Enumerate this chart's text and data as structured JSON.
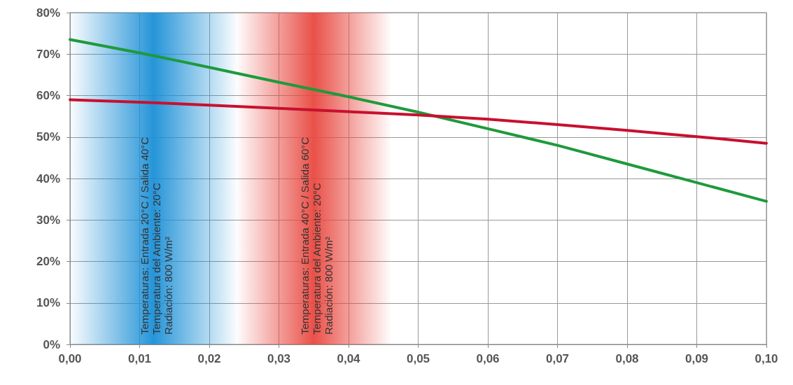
{
  "chart_data": {
    "type": "line",
    "x": [
      0,
      0.01,
      0.02,
      0.03,
      0.04,
      0.05,
      0.06,
      0.07,
      0.08,
      0.09,
      0.1
    ],
    "series": [
      {
        "color": "#1e9a3c",
        "values": [
          73.5,
          70.3,
          66.8,
          63.2,
          59.7,
          56,
          52,
          48,
          43.5,
          39,
          34.5
        ]
      },
      {
        "color": "#c8102e",
        "values": [
          59,
          58.4,
          57.7,
          56.9,
          56.1,
          55.3,
          54.3,
          53,
          51.6,
          50.1,
          48.5
        ]
      }
    ],
    "xlim": [
      0,
      0.1
    ],
    "xticks": [
      {
        "value": 0,
        "label": "0,00"
      },
      {
        "value": 0.01,
        "label": "0,01"
      },
      {
        "value": 0.02,
        "label": "0,02"
      },
      {
        "value": 0.03,
        "label": "0,03"
      },
      {
        "value": 0.04,
        "label": "0,04"
      },
      {
        "value": 0.05,
        "label": "0,05"
      },
      {
        "value": 0.06,
        "label": "0,06"
      },
      {
        "value": 0.07,
        "label": "0,07"
      },
      {
        "value": 0.08,
        "label": "0,08"
      },
      {
        "value": 0.09,
        "label": "0,09"
      },
      {
        "value": 0.1,
        "label": "0,10"
      }
    ],
    "ylim": [
      0,
      80
    ],
    "yticks": [
      {
        "value": 0,
        "label": "0%"
      },
      {
        "value": 10,
        "label": "10%"
      },
      {
        "value": 20,
        "label": "20%"
      },
      {
        "value": 30,
        "label": "30%"
      },
      {
        "value": 40,
        "label": "40%"
      },
      {
        "value": 50,
        "label": "50%"
      },
      {
        "value": 60,
        "label": "60%"
      },
      {
        "value": 70,
        "label": "70%"
      },
      {
        "value": 80,
        "label": "80%"
      }
    ],
    "bands": [
      {
        "axis": "x",
        "from": 0,
        "to": 0.024,
        "color": "#1a8fd6",
        "label": "Temperaturas: Entrada 20°C / Salida 40°C\nTemperatura del Ambiente: 20°C\nRadiación: 800 W/m²"
      },
      {
        "axis": "x",
        "from": 0.024,
        "to": 0.046,
        "color": "#e8473f",
        "label": "Temperaturas: Entrada 40°C / Salida 60°C\nTemperatura del Ambiente: 20°C\nRadiación: 800 W/m²"
      }
    ],
    "grid": true,
    "marker": "none",
    "line_style": "solid"
  }
}
